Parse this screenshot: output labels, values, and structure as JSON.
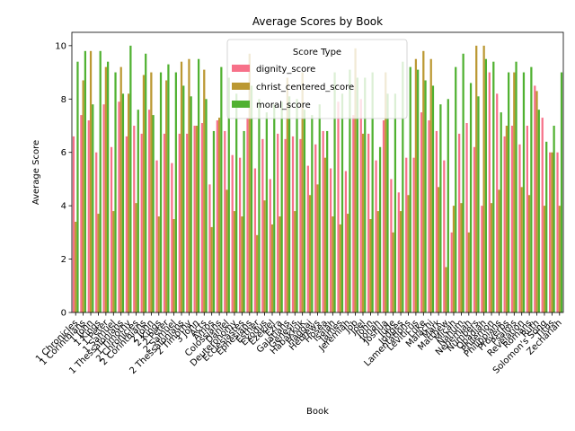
{
  "chart_data": {
    "type": "bar",
    "title": "Average Scores by Book",
    "xlabel": "Book",
    "ylabel": "Average Score",
    "ylim": [
      0,
      10.5
    ],
    "yticks": [
      0,
      2,
      4,
      6,
      8,
      10
    ],
    "grid": false,
    "legend": {
      "title": "Score Type",
      "placement": "top-center"
    },
    "categories": [
      "1 Chronicles",
      "1 Corinthians",
      "1 John",
      "1 Kings",
      "1 Peter",
      "1 Samuel",
      "1 Thessalonians",
      "1 Timothy",
      "2 Chronicles",
      "2 Corinthians",
      "2 John",
      "2 Kings",
      "2 Peter",
      "2 Samuel",
      "2 Thessalonians",
      "2 Timothy",
      "3 John",
      "Acts",
      "Amos",
      "Colossians",
      "Daniel",
      "Deuteronomy",
      "Ecclesiastes",
      "Ephesians",
      "Esther",
      "Exodus",
      "Ezekiel",
      "Ezra",
      "Galatians",
      "Genesis",
      "Habakkuk",
      "Haggai",
      "Hebrews",
      "Hosea",
      "Isaiah",
      "James",
      "Jeremiah",
      "Job",
      "Joel",
      "John",
      "Jonah",
      "Joshua",
      "Jude",
      "Judges",
      "Lamentations",
      "Leviticus",
      "Luke",
      "Malachi",
      "Mark",
      "Matthew",
      "Micah",
      "Nahum",
      "Nehemiah",
      "Numbers",
      "Obadiah",
      "Philemon",
      "Philippians",
      "Proverbs",
      "Psalms",
      "Revelation",
      "Romans",
      "Ruth",
      "Solomon's Song",
      "Titus",
      "Zechariah"
    ],
    "series": [
      {
        "name": "dignity_score",
        "color": "#f77189",
        "values": [
          6.6,
          7.4,
          7.2,
          6.0,
          7.8,
          6.2,
          7.9,
          6.6,
          7.0,
          6.7,
          7.6,
          5.7,
          6.7,
          5.6,
          6.7,
          6.7,
          7.0,
          7.1,
          4.8,
          7.2,
          6.8,
          5.9,
          5.8,
          7.3,
          5.4,
          6.5,
          5.0,
          6.7,
          6.5,
          6.6,
          6.5,
          5.5,
          6.3,
          6.8,
          5.4,
          7.9,
          5.3,
          7.4,
          8.0,
          6.7,
          5.7,
          7.2,
          5.0,
          4.5,
          5.8,
          5.8,
          7.5,
          7.2,
          6.8,
          5.7,
          3.0,
          6.7,
          7.1,
          6.2,
          4.0,
          9.0,
          8.2,
          6.6,
          7.0,
          6.3,
          7.0,
          8.5,
          7.3,
          6.0,
          6.0
        ]
      },
      {
        "name": "christ_centered_score",
        "color": "#bb9832",
        "values": [
          3.4,
          8.7,
          9.8,
          3.7,
          9.2,
          3.8,
          9.2,
          8.2,
          4.1,
          8.9,
          9.0,
          3.6,
          8.7,
          3.5,
          9.4,
          9.5,
          7.0,
          9.1,
          3.2,
          7.3,
          4.6,
          3.8,
          3.6,
          9.7,
          2.9,
          4.2,
          3.3,
          3.6,
          8.8,
          3.8,
          9.0,
          4.4,
          4.8,
          5.8,
          3.6,
          3.3,
          3.7,
          9.9,
          6.7,
          3.5,
          3.8,
          9.0,
          3.0,
          3.8,
          4.4,
          9.5,
          9.8,
          9.5,
          4.7,
          1.7,
          4.0,
          4.1,
          3.0,
          10.0,
          10.0,
          4.1,
          4.6,
          7.0,
          9.0,
          4.7,
          4.4,
          8.3,
          4.0,
          6.0,
          4.0
        ]
      },
      {
        "name": "moral_score",
        "color": "#50b131",
        "values": [
          9.4,
          9.8,
          7.8,
          9.8,
          9.4,
          9.0,
          8.2,
          10.0,
          7.6,
          9.7,
          7.4,
          9.0,
          9.3,
          9.0,
          8.5,
          8.1,
          9.5,
          8.0,
          6.8,
          9.2,
          8.8,
          8.2,
          6.8,
          8.5,
          8.0,
          7.5,
          7.8,
          7.9,
          8.1,
          8.0,
          7.6,
          7.4,
          7.8,
          6.8,
          9.0,
          8.2,
          9.1,
          8.8,
          8.8,
          9.0,
          6.2,
          8.2,
          8.2,
          9.4,
          9.2,
          9.1,
          8.7,
          8.5,
          7.8,
          8.0,
          9.2,
          9.7,
          8.6,
          8.1,
          9.5,
          9.4,
          7.5,
          9.0,
          9.4,
          9.0,
          9.2,
          7.6,
          6.4,
          7.0,
          9.0
        ]
      }
    ]
  }
}
